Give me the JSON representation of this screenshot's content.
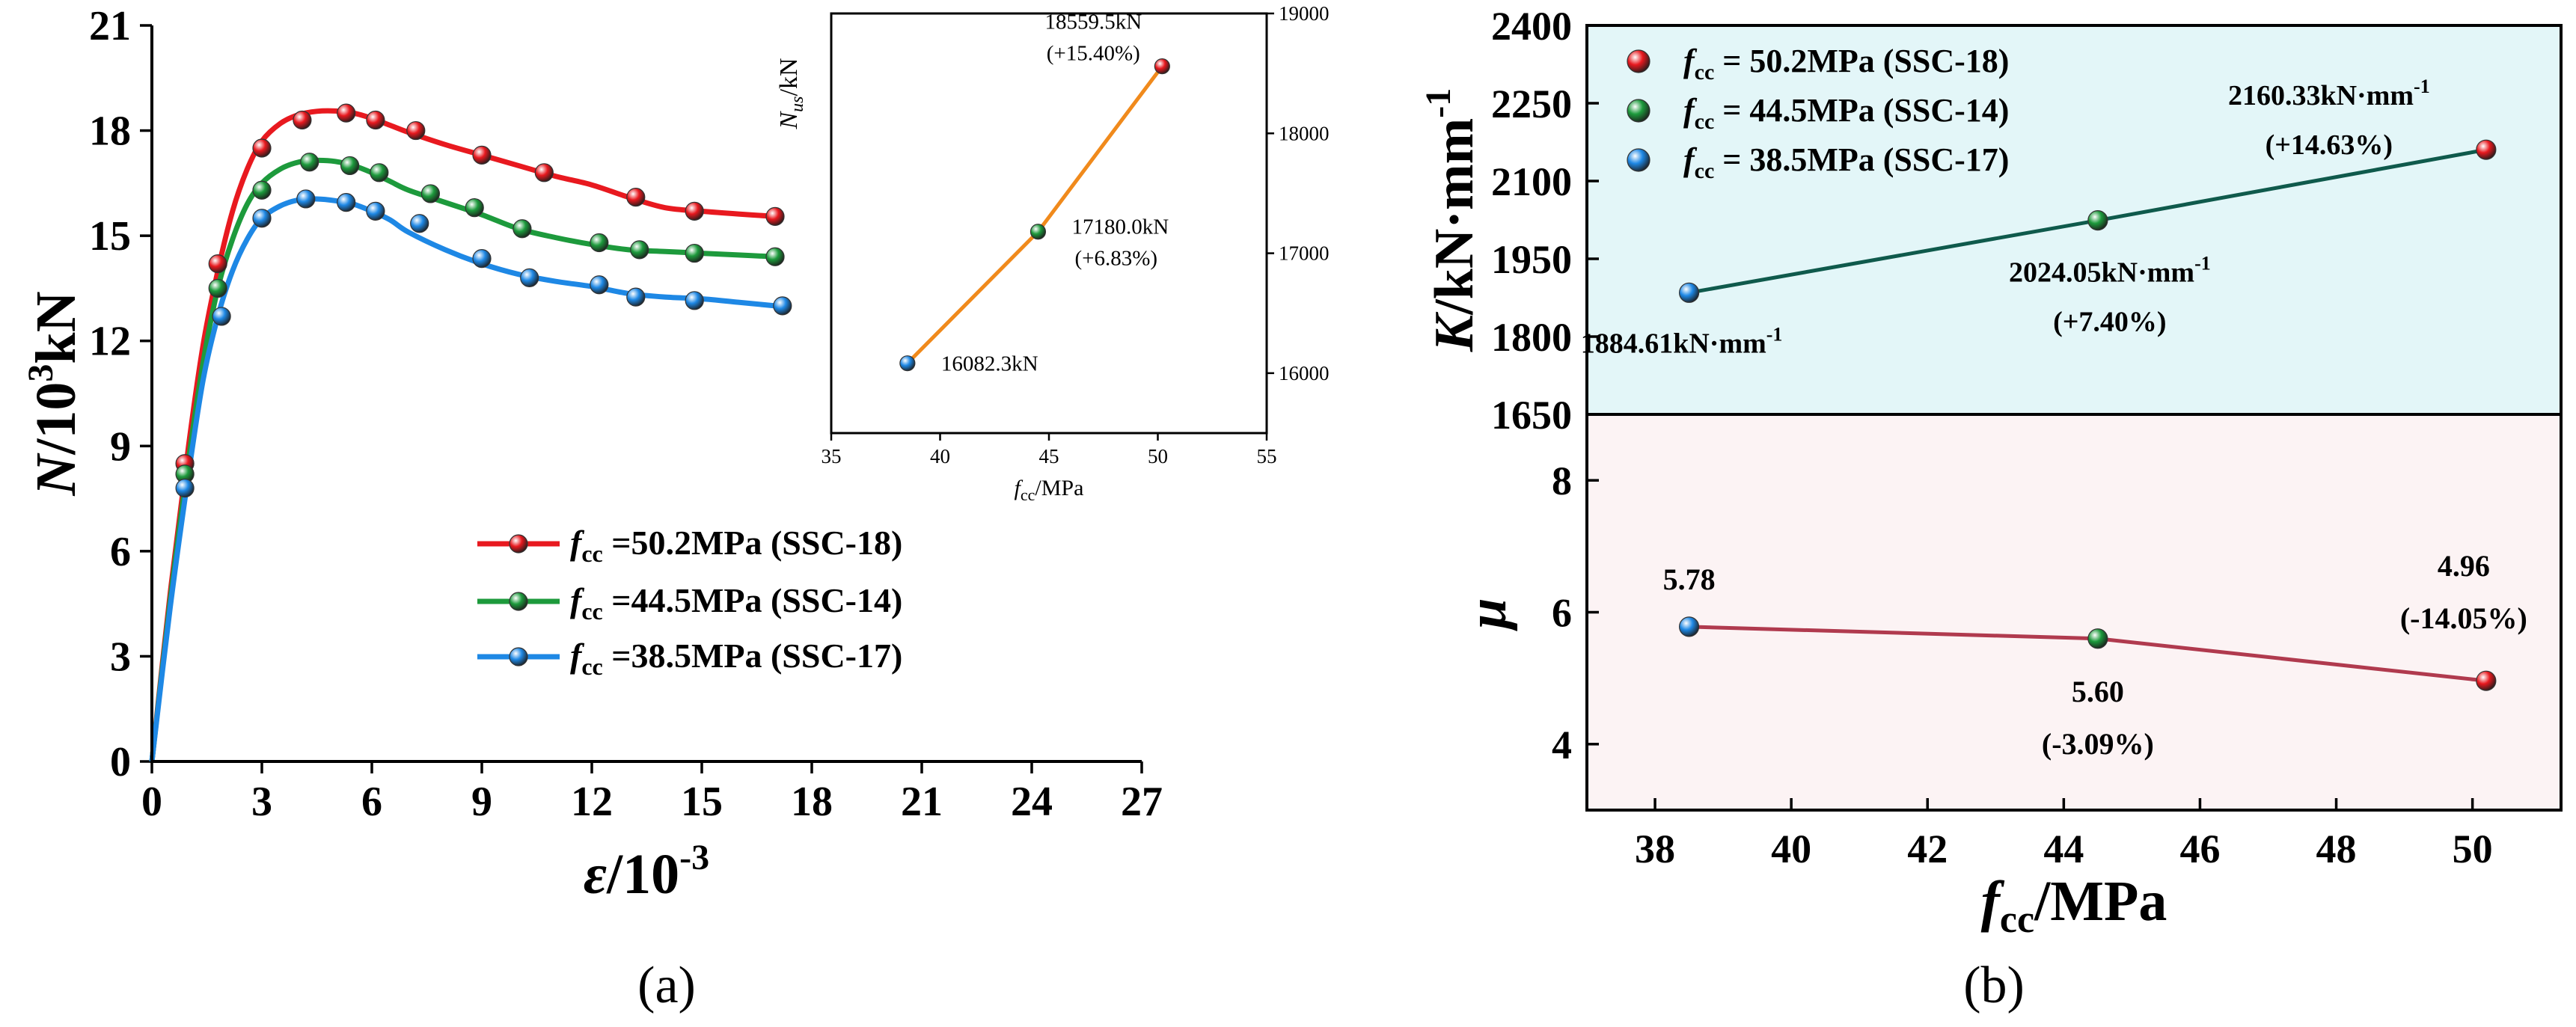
{
  "chart_data": [
    {
      "id": "a",
      "type": "line",
      "panel_label": "(a)",
      "xlabel_var": "ε",
      "xlabel_unit": "/10",
      "xlabel_sup": "-3",
      "ylabel_var": "N",
      "ylabel_unit": "/10",
      "ylabel_sup": "3",
      "ylabel_tail": "kN",
      "xlim": [
        0,
        27
      ],
      "ylim": [
        0,
        21
      ],
      "xticks": [
        "0",
        "3",
        "6",
        "9",
        "12",
        "15",
        "18",
        "21",
        "24",
        "27"
      ],
      "yticks": [
        "0",
        "3",
        "6",
        "9",
        "12",
        "15",
        "18",
        "21"
      ],
      "legend": {
        "placement": "center-right",
        "prefix": "f",
        "sub": "cc",
        "entries": [
          " =50.2MPa (SSC-18)",
          " =44.5MPa (SSC-14)",
          " =38.5MPa (SSC-17)"
        ]
      },
      "series": [
        {
          "name": "fcc=50.2MPa (SSC-18)",
          "color": "#e8191f",
          "dark": "#8a0000",
          "light": "#ffb0b0",
          "x": [
            0.0,
            0.5,
            1.0,
            1.4,
            1.8,
            2.2,
            2.6,
            3.0,
            3.5,
            4.0,
            4.5,
            5.0,
            5.5,
            6.0,
            6.5,
            7.0,
            8.0,
            9.0,
            10.0,
            11.0,
            12.0,
            13.0,
            14.0,
            15.0,
            16.0,
            17.0
          ],
          "y": [
            0.0,
            4.8,
            9.0,
            11.9,
            14.0,
            15.7,
            16.9,
            17.7,
            18.2,
            18.45,
            18.55,
            18.56,
            18.5,
            18.35,
            18.15,
            17.95,
            17.6,
            17.3,
            17.0,
            16.7,
            16.45,
            16.1,
            15.8,
            15.7,
            15.62,
            15.55
          ],
          "markers_x": [
            0.9,
            1.8,
            3.0,
            4.1,
            5.3,
            6.1,
            7.2,
            9.0,
            10.7,
            13.2,
            14.8,
            17.0
          ],
          "markers_y": [
            8.5,
            14.2,
            17.5,
            18.3,
            18.5,
            18.3,
            18.0,
            17.3,
            16.8,
            16.1,
            15.7,
            15.55
          ]
        },
        {
          "name": "fcc=44.5MPa (SSC-14)",
          "color": "#1d9a3c",
          "dark": "#0a4a1a",
          "light": "#a8eab8",
          "x": [
            0.0,
            0.5,
            1.0,
            1.4,
            1.8,
            2.2,
            2.6,
            3.0,
            3.5,
            4.0,
            4.5,
            5.0,
            5.5,
            6.0,
            6.5,
            7.0,
            8.0,
            9.0,
            10.0,
            11.0,
            12.0,
            13.0,
            14.0,
            15.0,
            16.0,
            17.0
          ],
          "y": [
            0.0,
            4.6,
            8.6,
            11.4,
            13.5,
            14.9,
            15.9,
            16.5,
            16.9,
            17.1,
            17.15,
            17.12,
            17.0,
            16.8,
            16.55,
            16.3,
            15.95,
            15.6,
            15.2,
            14.95,
            14.75,
            14.6,
            14.55,
            14.5,
            14.45,
            14.4
          ],
          "markers_x": [
            0.9,
            1.8,
            3.0,
            4.3,
            5.4,
            6.2,
            7.6,
            8.8,
            10.1,
            12.2,
            13.3,
            14.8,
            17.0
          ],
          "markers_y": [
            8.2,
            13.5,
            16.3,
            17.1,
            17.0,
            16.8,
            16.2,
            15.8,
            15.2,
            14.8,
            14.6,
            14.5,
            14.4
          ]
        },
        {
          "name": "fcc=38.5MPa (SSC-17)",
          "color": "#1e88e5",
          "dark": "#0b3f7a",
          "light": "#b8dcff",
          "x": [
            0.0,
            0.5,
            1.0,
            1.4,
            1.8,
            2.2,
            2.6,
            3.0,
            3.5,
            4.0,
            4.5,
            5.0,
            5.5,
            6.0,
            6.5,
            7.0,
            8.0,
            9.0,
            10.0,
            11.0,
            12.0,
            13.0,
            14.0,
            15.0,
            16.0,
            17.0
          ],
          "y": [
            0.0,
            4.4,
            8.2,
            10.9,
            12.7,
            14.0,
            14.9,
            15.5,
            15.85,
            16.02,
            16.05,
            16.0,
            15.9,
            15.7,
            15.45,
            15.1,
            14.6,
            14.2,
            13.9,
            13.7,
            13.55,
            13.35,
            13.25,
            13.2,
            13.1,
            13.0
          ],
          "markers_x": [
            0.9,
            1.9,
            3.0,
            4.2,
            5.3,
            6.1,
            7.3,
            9.0,
            10.3,
            12.2,
            13.2,
            14.8,
            17.2
          ],
          "markers_y": [
            7.8,
            12.7,
            15.5,
            16.05,
            15.95,
            15.7,
            15.35,
            14.35,
            13.8,
            13.6,
            13.25,
            13.15,
            13.0
          ]
        }
      ]
    },
    {
      "id": "a-inset",
      "type": "line",
      "title": "",
      "xlabel": "f",
      "xlabel_sub": "cc",
      "xlabel_tail": "/MPa",
      "ylabel": "N",
      "ylabel_sub": "us",
      "ylabel_tail": "/kN",
      "xlim": [
        35,
        55
      ],
      "ylim": [
        15500,
        19000
      ],
      "xticks": [
        "35",
        "40",
        "45",
        "50",
        "55"
      ],
      "yticks": [
        "16000",
        "17000",
        "18000",
        "19000"
      ],
      "line_color": "#f08a1c",
      "points": [
        {
          "x": 38.5,
          "y": 16082.3,
          "color": "#1e88e5",
          "label": "16082.3kN",
          "pct": ""
        },
        {
          "x": 44.5,
          "y": 17180.0,
          "color": "#1d9a3c",
          "label": "17180.0kN",
          "pct": "(+6.83%)"
        },
        {
          "x": 50.2,
          "y": 18559.5,
          "color": "#e8191f",
          "label": "18559.5kN",
          "pct": "(+15.40%)"
        }
      ]
    },
    {
      "id": "b-top",
      "type": "line",
      "panel_label": "(b)",
      "ylabel_var": "K",
      "ylabel_unit": "/kN·mm",
      "ylabel_sup": "-1",
      "xlim": [
        37,
        51.3
      ],
      "ylim": [
        1650,
        2400
      ],
      "yticks": [
        "1650",
        "1800",
        "1950",
        "2100",
        "2250",
        "2400"
      ],
      "background": "#e3f6f8",
      "line_color": "#0f5a4c",
      "legend": {
        "placement": "top-left",
        "prefix": "f",
        "sub": "cc",
        "entries": [
          " = 50.2MPa (SSC-18)",
          " = 44.5MPa (SSC-14)",
          " = 38.5MPa (SSC-17)"
        ],
        "colors": [
          "#e8191f",
          "#1d9a3c",
          "#1e88e5"
        ]
      },
      "points": [
        {
          "x": 38.5,
          "y": 1884.61,
          "color": "#1e88e5",
          "label": "1884.61kN·mm",
          "sup": "-1",
          "pct": ""
        },
        {
          "x": 44.5,
          "y": 2024.05,
          "color": "#1d9a3c",
          "label": "2024.05kN·mm",
          "sup": "-1",
          "pct": "(+7.40%)"
        },
        {
          "x": 50.2,
          "y": 2160.33,
          "color": "#e8191f",
          "label": "2160.33kN·mm",
          "sup": "-1",
          "pct": "(+14.63%)"
        }
      ]
    },
    {
      "id": "b-bottom",
      "type": "line",
      "ylabel": "μ",
      "xlabel": "f",
      "xlabel_sub": "cc",
      "xlabel_tail": "/MPa",
      "xlim": [
        37,
        51.3
      ],
      "ylim": [
        3,
        9
      ],
      "xticks": [
        "38",
        "40",
        "42",
        "44",
        "46",
        "48",
        "50"
      ],
      "yticks": [
        "4",
        "6",
        "8"
      ],
      "background": "#fcf3f4",
      "line_color": "#b03a4e",
      "points": [
        {
          "x": 38.5,
          "y": 5.78,
          "color": "#1e88e5",
          "label": "5.78",
          "pct": ""
        },
        {
          "x": 44.5,
          "y": 5.6,
          "color": "#1d9a3c",
          "label": "5.60",
          "pct": "(-3.09%)"
        },
        {
          "x": 50.2,
          "y": 4.96,
          "color": "#e8191f",
          "label": "4.96",
          "pct": "(-14.05%)"
        }
      ]
    }
  ]
}
